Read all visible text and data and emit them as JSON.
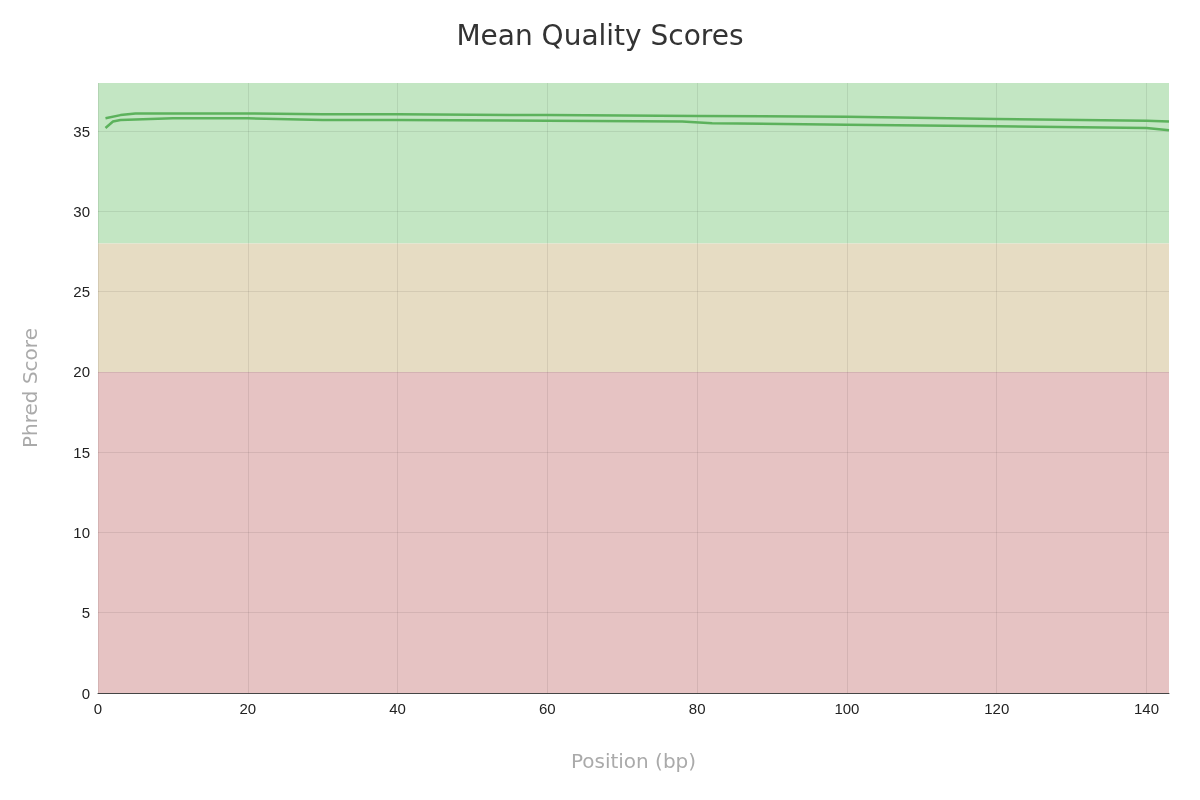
{
  "chart_data": {
    "type": "line",
    "title": "Mean Quality Scores",
    "xlabel": "Position (bp)",
    "ylabel": "Phred Score",
    "xlim": [
      0,
      143
    ],
    "xticks": [
      0,
      20,
      40,
      60,
      80,
      100,
      120,
      140
    ],
    "ylim": [
      0,
      38
    ],
    "yticks": [
      0,
      5,
      10,
      15,
      20,
      25,
      30,
      35
    ],
    "grid": true,
    "marker": "none",
    "line_style": "solid",
    "bands": [
      {
        "axis": "y",
        "from": 28,
        "to": 38,
        "color": "#c3e6c3"
      },
      {
        "axis": "y",
        "from": 20,
        "to": 28,
        "color": "#e6dcc3"
      },
      {
        "axis": "y",
        "from": 0,
        "to": 20,
        "color": "#e6c3c3"
      }
    ],
    "series": [
      {
        "color": "#5cb25c",
        "x": [
          1,
          3,
          5,
          10,
          20,
          30,
          40,
          60,
          80,
          100,
          107,
          120,
          140,
          143
        ],
        "values": [
          35.8,
          36.0,
          36.1,
          36.1,
          36.1,
          36.05,
          36.05,
          36.0,
          35.95,
          35.9,
          35.85,
          35.75,
          35.65,
          35.6
        ]
      },
      {
        "color": "#5cb25c",
        "x": [
          1,
          2,
          3,
          10,
          20,
          30,
          40,
          60,
          78,
          82,
          100,
          120,
          140,
          143
        ],
        "values": [
          35.2,
          35.6,
          35.7,
          35.8,
          35.8,
          35.7,
          35.7,
          35.65,
          35.6,
          35.5,
          35.4,
          35.3,
          35.2,
          35.05
        ]
      }
    ]
  }
}
